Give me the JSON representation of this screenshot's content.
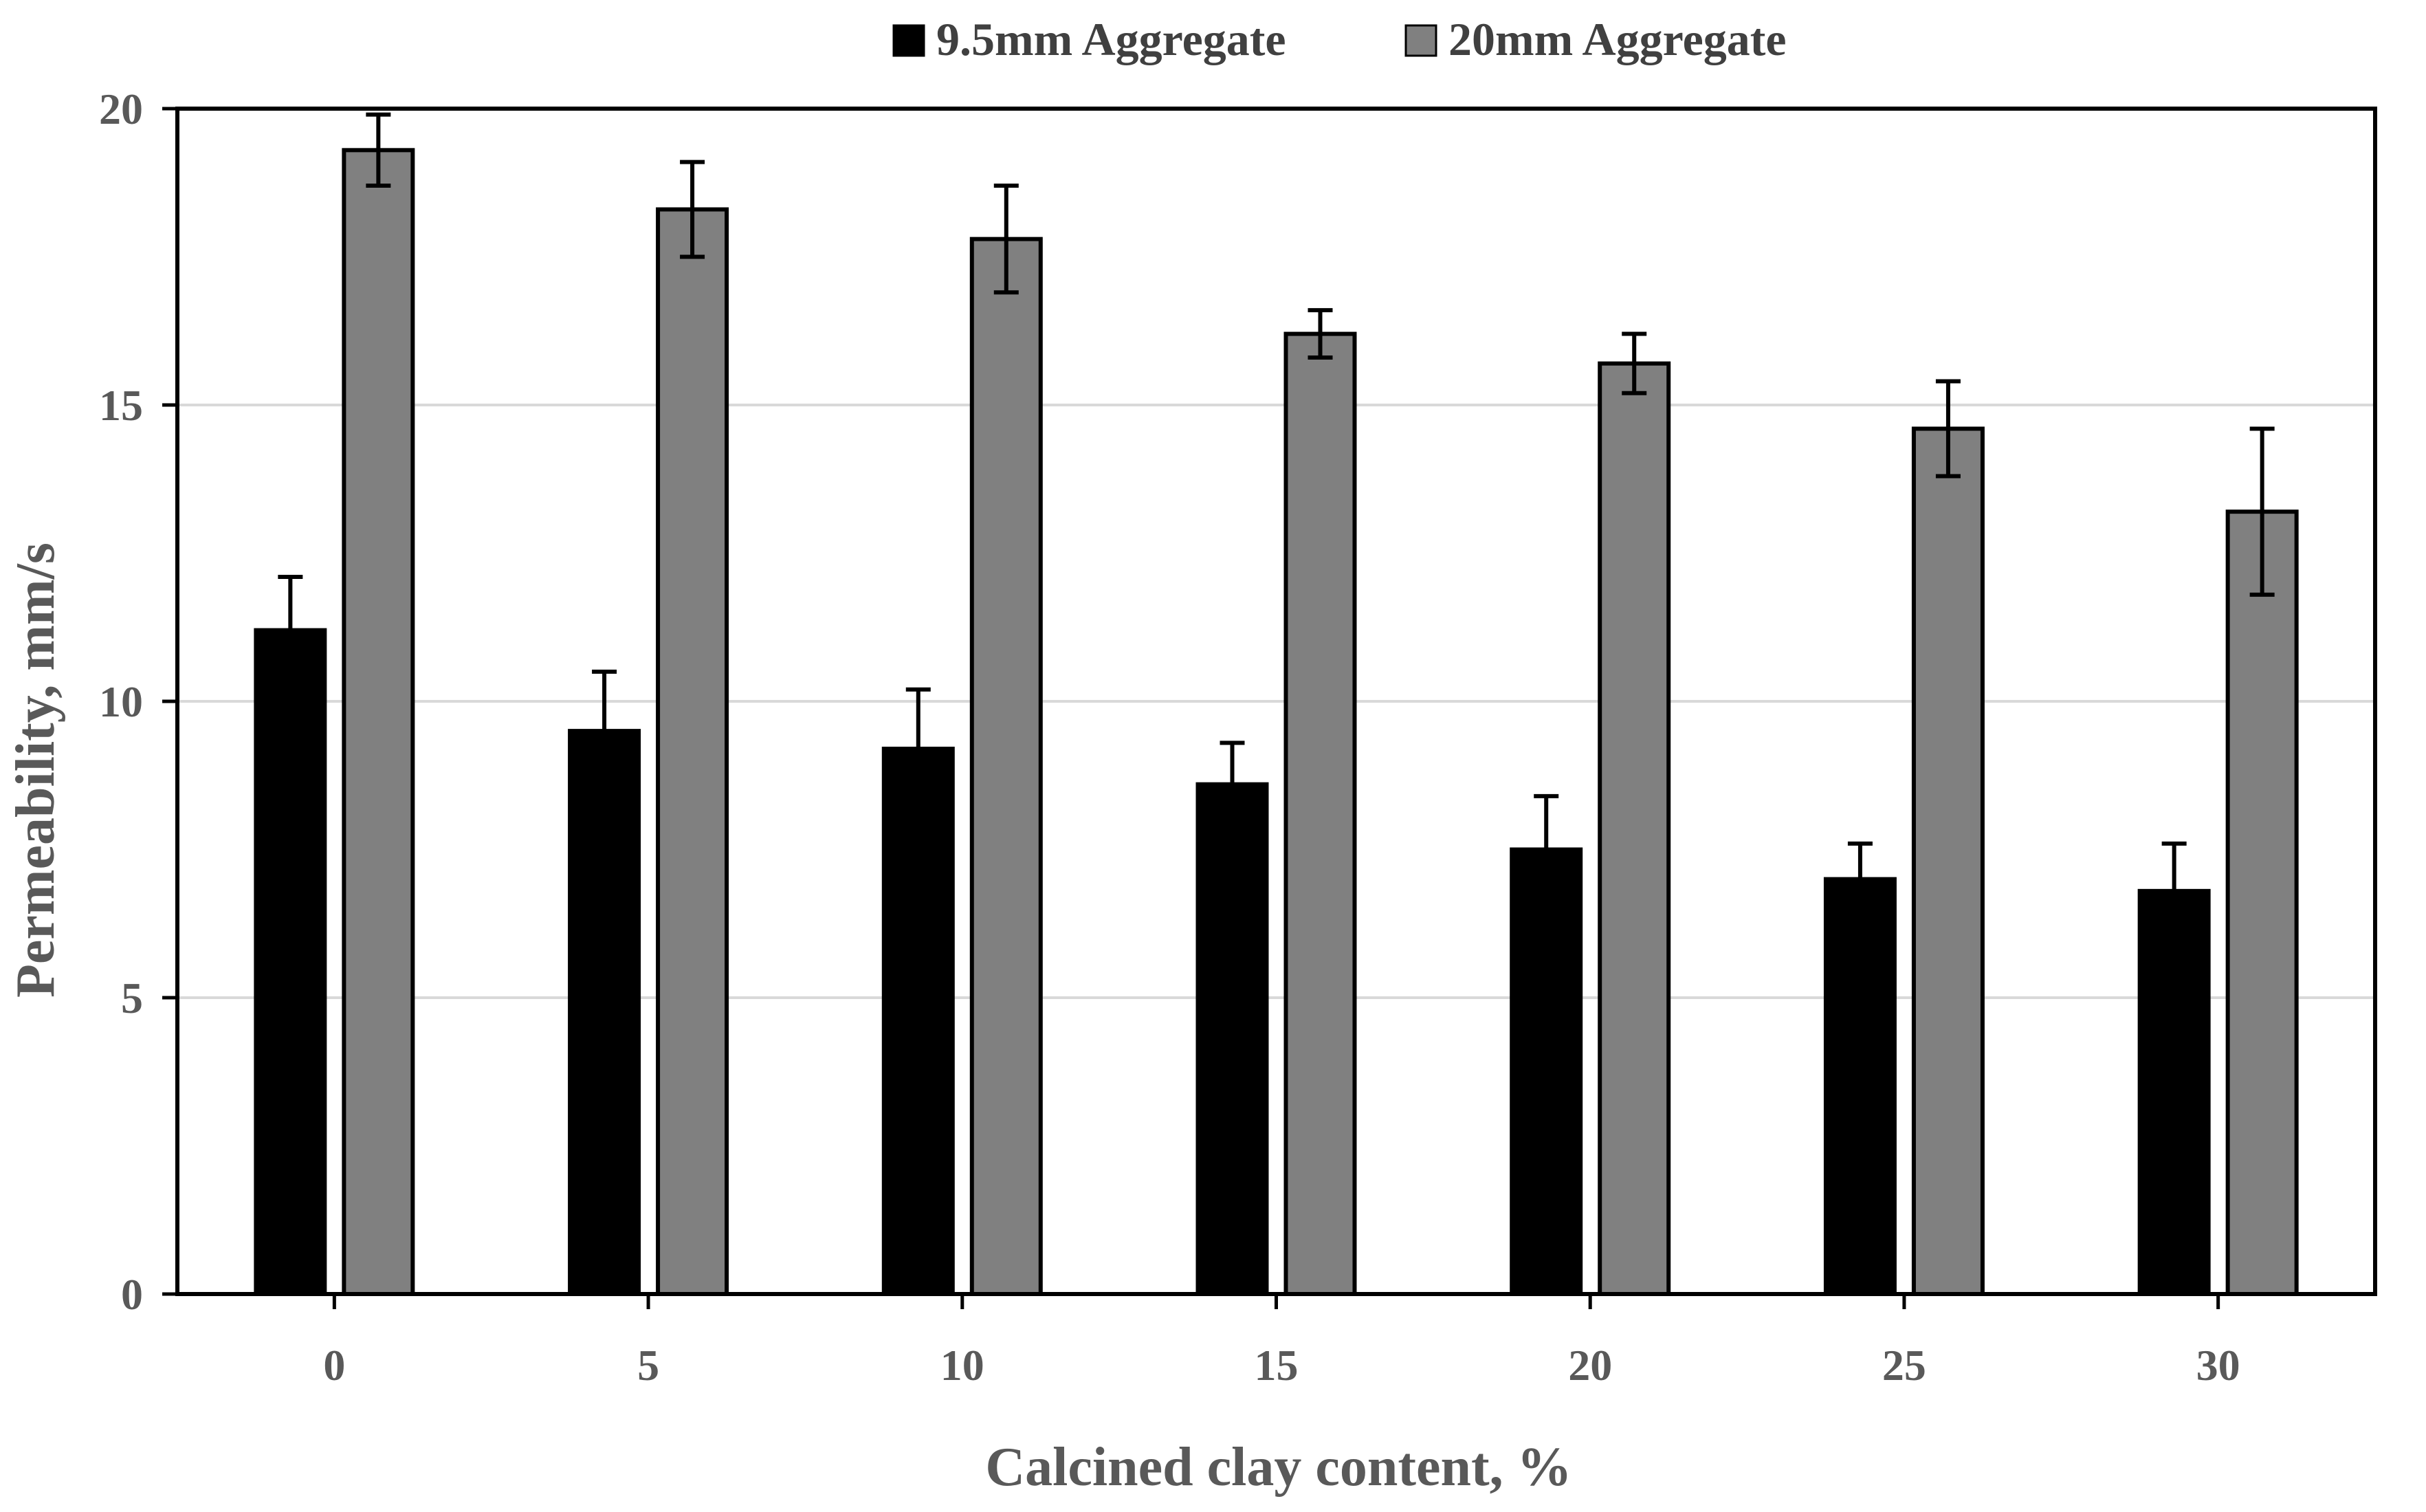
{
  "chart_data": {
    "type": "bar",
    "title": "",
    "xlabel": "Calcined clay content, %",
    "ylabel": "Permeability, mm/s",
    "categories": [
      "0",
      "5",
      "10",
      "15",
      "20",
      "25",
      "30"
    ],
    "ylim": [
      0,
      20
    ],
    "yticks": [
      "0",
      "5",
      "10",
      "15",
      "20"
    ],
    "grid": true,
    "legend_position": "top-center",
    "series": [
      {
        "name": "9.5mm Aggregate",
        "color": "#000000",
        "values": [
          11.2,
          9.5,
          9.2,
          8.6,
          7.5,
          7.0,
          6.8
        ],
        "errors": [
          0.9,
          1.0,
          1.0,
          0.7,
          0.9,
          0.6,
          0.8
        ]
      },
      {
        "name": "20mm Aggregate",
        "color": "#808080",
        "values": [
          19.3,
          18.3,
          17.8,
          16.2,
          15.7,
          14.6,
          13.2
        ],
        "errors": [
          0.6,
          0.8,
          0.9,
          0.4,
          0.5,
          0.8,
          1.4
        ]
      }
    ]
  }
}
